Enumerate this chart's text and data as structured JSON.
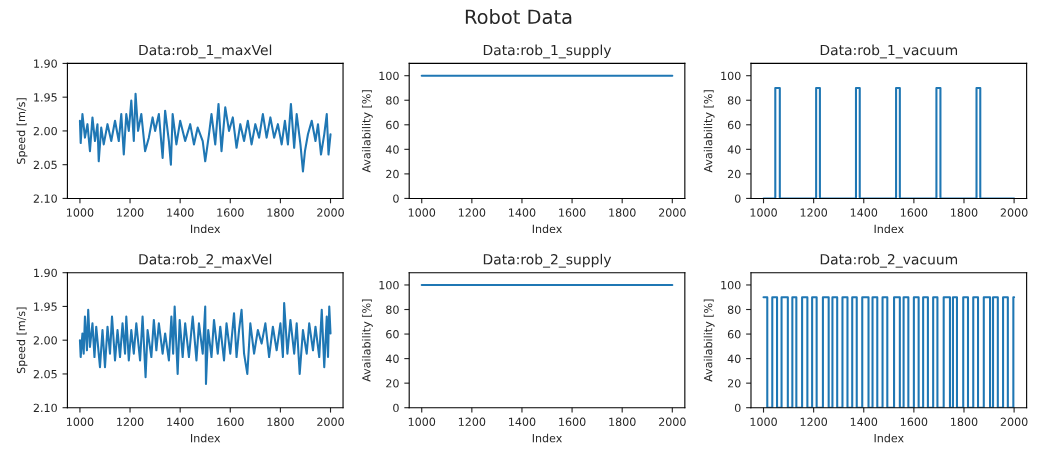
{
  "chart_data": [
    {
      "type": "line",
      "title": "Data:rob_1_maxVel",
      "xlabel": "Index",
      "ylabel": "Speed [m/s]",
      "annotations": [
        "Robot Data"
      ],
      "xlim": [
        950,
        2050
      ],
      "xticks": [
        1000,
        1200,
        1400,
        1600,
        1800,
        2000
      ],
      "ylim": [
        2.1,
        1.9
      ],
      "yticks": [
        {
          "value": 1.9,
          "label": "1.90"
        },
        1.95,
        {
          "value": 2.0,
          "label": "2.00"
        },
        2.05,
        {
          "value": 2.1,
          "label": "2.10"
        }
      ],
      "grid": false,
      "legend": false,
      "series": [
        {
          "color": "#1f77b4",
          "x": [
            1000,
            1003,
            1010,
            1020,
            1030,
            1040,
            1050,
            1060,
            1070,
            1075,
            1085,
            1095,
            1110,
            1125,
            1140,
            1155,
            1165,
            1175,
            1185,
            1195,
            1205,
            1215,
            1222,
            1232,
            1245,
            1260,
            1275,
            1290,
            1300,
            1315,
            1330,
            1340,
            1355,
            1363,
            1370,
            1385,
            1400,
            1420,
            1440,
            1455,
            1470,
            1490,
            1500,
            1515,
            1525,
            1540,
            1553,
            1565,
            1580,
            1595,
            1610,
            1625,
            1640,
            1655,
            1670,
            1685,
            1700,
            1715,
            1730,
            1745,
            1760,
            1775,
            1790,
            1805,
            1818,
            1830,
            1842,
            1855,
            1865,
            1880,
            1890,
            1898,
            1910,
            1925,
            1940,
            1950,
            1962,
            1975,
            1985,
            1992,
            2000
          ],
          "values": [
            1.985,
            2.018,
            1.975,
            2.01,
            1.99,
            2.03,
            1.98,
            2.015,
            1.99,
            2.045,
            1.995,
            2.02,
            1.99,
            2.015,
            1.985,
            2.015,
            1.975,
            2.035,
            1.975,
            2.0,
            1.955,
            2.015,
            1.945,
            2.0,
            1.975,
            2.03,
            2.01,
            1.98,
            2.0,
            1.975,
            2.04,
            1.97,
            2.015,
            2.05,
            1.975,
            2.02,
            1.985,
            2.015,
            1.99,
            2.02,
            1.995,
            2.015,
            2.045,
            2.005,
            1.975,
            2.02,
            1.96,
            2.03,
            1.965,
            2.0,
            1.98,
            2.025,
            1.99,
            2.015,
            1.985,
            2.02,
            1.99,
            2.01,
            1.975,
            2.01,
            1.98,
            2.01,
            1.99,
            2.02,
            1.985,
            2.02,
            1.96,
            2.025,
            1.975,
            2.02,
            2.06,
            2.03,
            2.005,
            1.985,
            2.015,
            1.99,
            2.035,
            2.005,
            1.975,
            2.035,
            2.005
          ]
        }
      ]
    },
    {
      "type": "line",
      "title": "Data:rob_1_supply",
      "xlabel": "Index",
      "ylabel": "Availability [%]",
      "xlim": [
        950,
        2050
      ],
      "xticks": [
        1000,
        1200,
        1400,
        1600,
        1800,
        2000
      ],
      "ylim": [
        0,
        110
      ],
      "yticks": [
        0,
        20,
        40,
        60,
        80,
        100
      ],
      "grid": false,
      "legend": false,
      "series": [
        {
          "color": "#1f77b4",
          "x": [
            1000,
            1200,
            1400,
            1600,
            1800,
            2000
          ],
          "values": [
            100,
            100,
            100,
            100,
            100,
            100
          ]
        }
      ]
    },
    {
      "type": "line",
      "title": "Data:rob_1_vacuum",
      "xlabel": "Index",
      "ylabel": "Availability [%]",
      "xlim": [
        950,
        2050
      ],
      "xticks": [
        1000,
        1200,
        1400,
        1600,
        1800,
        2000
      ],
      "ylim": [
        0,
        110
      ],
      "yticks": [
        0,
        20,
        40,
        60,
        80,
        100
      ],
      "grid": false,
      "legend": false,
      "series": [
        {
          "color": "#1f77b4",
          "x": [
            1000,
            1047,
            1047,
            1065,
            1065,
            1210,
            1210,
            1225,
            1225,
            1369,
            1369,
            1384,
            1384,
            1529,
            1529,
            1544,
            1544,
            1690,
            1690,
            1706,
            1706,
            1850,
            1850,
            1865,
            1865,
            2000
          ],
          "values": [
            0,
            0,
            90,
            90,
            0,
            0,
            90,
            90,
            0,
            0,
            90,
            90,
            0,
            0,
            90,
            90,
            0,
            0,
            90,
            90,
            0,
            0,
            90,
            90,
            0,
            0
          ]
        }
      ]
    },
    {
      "type": "line",
      "title": "Data:rob_2_maxVel",
      "xlabel": "Index",
      "ylabel": "Speed [m/s]",
      "xlim": [
        950,
        2050
      ],
      "xticks": [
        1000,
        1200,
        1400,
        1600,
        1800,
        2000
      ],
      "ylim": [
        2.1,
        1.9
      ],
      "yticks": [
        {
          "value": 1.9,
          "label": "1.90"
        },
        1.95,
        {
          "value": 2.0,
          "label": "2.00"
        },
        2.05,
        {
          "value": 2.1,
          "label": "2.10"
        }
      ],
      "grid": false,
      "legend": false,
      "series": [
        {
          "color": "#1f77b4",
          "x": [
            1000,
            1003,
            1010,
            1015,
            1020,
            1028,
            1033,
            1040,
            1050,
            1058,
            1065,
            1080,
            1090,
            1100,
            1110,
            1120,
            1128,
            1140,
            1150,
            1160,
            1170,
            1180,
            1185,
            1195,
            1205,
            1215,
            1225,
            1240,
            1250,
            1262,
            1270,
            1285,
            1295,
            1305,
            1315,
            1330,
            1340,
            1355,
            1365,
            1372,
            1378,
            1390,
            1398,
            1410,
            1420,
            1435,
            1450,
            1465,
            1475,
            1490,
            1500,
            1503,
            1512,
            1525,
            1535,
            1550,
            1560,
            1575,
            1585,
            1600,
            1615,
            1625,
            1635,
            1645,
            1655,
            1668,
            1680,
            1695,
            1710,
            1725,
            1740,
            1755,
            1770,
            1785,
            1800,
            1810,
            1815,
            1828,
            1840,
            1855,
            1865,
            1877,
            1890,
            1905,
            1915,
            1930,
            1940,
            1955,
            1965,
            1975,
            1985,
            1990,
            1995,
            2000
          ],
          "values": [
            2.0,
            2.025,
            1.99,
            2.02,
            1.965,
            2.015,
            1.955,
            2.01,
            1.975,
            2.025,
            1.98,
            2.04,
            1.985,
            2.04,
            1.98,
            2.02,
            1.965,
            2.03,
            1.985,
            2.025,
            1.975,
            2.02,
            1.965,
            2.03,
            1.985,
            2.02,
            1.975,
            2.03,
            1.965,
            2.055,
            1.985,
            2.025,
            1.97,
            2.015,
            1.975,
            2.02,
            1.99,
            2.03,
            1.965,
            2.02,
            1.95,
            2.05,
            1.97,
            2.025,
            1.975,
            2.025,
            1.965,
            2.03,
            1.975,
            2.02,
            1.95,
            2.065,
            1.985,
            2.025,
            1.97,
            2.02,
            1.98,
            2.03,
            1.975,
            2.02,
            1.96,
            2.025,
            1.985,
            1.955,
            2.02,
            2.05,
            1.975,
            2.02,
            1.985,
            2.005,
            1.975,
            2.025,
            1.98,
            2.015,
            1.975,
            2.025,
            1.945,
            2.02,
            1.97,
            2.02,
            1.975,
            2.05,
            1.985,
            2.02,
            1.975,
            2.015,
            1.98,
            2.025,
            1.955,
            2.04,
            1.965,
            2.025,
            1.95,
            1.99
          ]
        }
      ]
    },
    {
      "type": "line",
      "title": "Data:rob_2_supply",
      "xlabel": "Index",
      "ylabel": "Availability [%]",
      "xlim": [
        950,
        2050
      ],
      "xticks": [
        1000,
        1200,
        1400,
        1600,
        1800,
        2000
      ],
      "ylim": [
        0,
        110
      ],
      "yticks": [
        0,
        20,
        40,
        60,
        80,
        100
      ],
      "grid": false,
      "legend": false,
      "series": [
        {
          "color": "#1f77b4",
          "x": [
            1000,
            1200,
            1400,
            1600,
            1800,
            2000
          ],
          "values": [
            100,
            100,
            100,
            100,
            100,
            100
          ]
        }
      ]
    },
    {
      "type": "line",
      "title": "Data:rob_2_vacuum",
      "xlabel": "Index",
      "ylabel": "Availability [%]",
      "xlim": [
        950,
        2050
      ],
      "xticks": [
        1000,
        1200,
        1400,
        1600,
        1800,
        2000
      ],
      "ylim": [
        0,
        110
      ],
      "yticks": [
        0,
        20,
        40,
        60,
        80,
        100
      ],
      "grid": false,
      "legend": false,
      "series": [
        {
          "color": "#1f77b4",
          "x": [
            1000,
            1015,
            1015,
            1035,
            1035,
            1054,
            1054,
            1072,
            1072,
            1097,
            1097,
            1115,
            1115,
            1131,
            1131,
            1154,
            1154,
            1175,
            1175,
            1194,
            1194,
            1212,
            1212,
            1237,
            1237,
            1260,
            1260,
            1275,
            1275,
            1294,
            1294,
            1315,
            1315,
            1335,
            1335,
            1354,
            1354,
            1372,
            1372,
            1394,
            1394,
            1419,
            1419,
            1435,
            1435,
            1454,
            1454,
            1475,
            1475,
            1494,
            1494,
            1521,
            1521,
            1544,
            1544,
            1559,
            1559,
            1578,
            1578,
            1600,
            1600,
            1619,
            1619,
            1637,
            1637,
            1656,
            1656,
            1677,
            1677,
            1694,
            1694,
            1719,
            1719,
            1744,
            1744,
            1756,
            1756,
            1772,
            1772,
            1797,
            1797,
            1816,
            1816,
            1837,
            1837,
            1856,
            1856,
            1879,
            1879,
            1904,
            1904,
            1916,
            1916,
            1935,
            1935,
            1956,
            1956,
            1975,
            1975,
            1997,
            1997,
            2000
          ],
          "values": [
            90,
            90,
            0,
            0,
            90,
            90,
            0,
            0,
            90,
            90,
            0,
            0,
            90,
            90,
            0,
            0,
            90,
            90,
            0,
            0,
            90,
            90,
            0,
            0,
            90,
            90,
            0,
            0,
            90,
            90,
            0,
            0,
            90,
            90,
            0,
            0,
            90,
            90,
            0,
            0,
            90,
            90,
            0,
            0,
            90,
            90,
            0,
            0,
            90,
            90,
            0,
            0,
            90,
            90,
            0,
            0,
            90,
            90,
            0,
            0,
            90,
            90,
            0,
            0,
            90,
            90,
            0,
            0,
            90,
            90,
            0,
            0,
            90,
            90,
            0,
            0,
            90,
            90,
            0,
            0,
            90,
            90,
            0,
            0,
            90,
            90,
            0,
            0,
            90,
            90,
            0,
            0,
            90,
            90,
            0,
            0,
            90,
            90,
            0,
            0,
            90,
            90
          ]
        }
      ]
    }
  ]
}
